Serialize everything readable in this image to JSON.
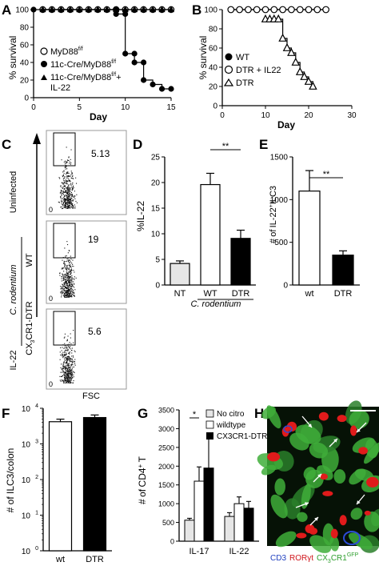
{
  "figure": {
    "panel_letters": [
      "A",
      "B",
      "C",
      "D",
      "E",
      "F",
      "G",
      "H"
    ]
  },
  "chart_data": [
    {
      "id": "A",
      "type": "line",
      "xlabel": "Day",
      "ylabel": "% survival",
      "xlim": [
        0,
        15
      ],
      "ylim": [
        0,
        100
      ],
      "xticks": [
        0,
        5,
        10,
        15
      ],
      "yticks": [
        0,
        20,
        40,
        60,
        80,
        100
      ],
      "series": [
        {
          "name": "MyD88f/f",
          "marker": "open-circle",
          "x": [
            1,
            2,
            3,
            4,
            5,
            6,
            7,
            8,
            9,
            10,
            11,
            12,
            13,
            14,
            15
          ],
          "y": [
            100,
            100,
            100,
            100,
            100,
            100,
            100,
            100,
            100,
            100,
            100,
            100,
            100,
            100,
            100
          ]
        },
        {
          "name": "11c-Cre/MyD88f/f",
          "marker": "filled-circle",
          "x": [
            0,
            9,
            9,
            10,
            10,
            11,
            11,
            12,
            12,
            13,
            14,
            15
          ],
          "y": [
            100,
            100,
            95,
            95,
            50,
            50,
            40,
            40,
            20,
            15,
            10,
            10
          ]
        },
        {
          "name": "11c-Cre/MyD88f/f + IL-22",
          "marker": "filled-triangle",
          "x": [
            1,
            2,
            3,
            4,
            5,
            6,
            7,
            8,
            9,
            10,
            11,
            12,
            13,
            14,
            15
          ],
          "y": [
            100,
            100,
            100,
            100,
            100,
            100,
            100,
            100,
            100,
            100,
            100,
            100,
            100,
            100,
            100
          ]
        }
      ],
      "legend": [
        "MyD88",
        "11c-Cre/MyD88",
        "11c-Cre/MyD88",
        "IL-22"
      ],
      "legend_sup": "f/f"
    },
    {
      "id": "B",
      "type": "line",
      "xlabel": "Day",
      "ylabel": "% survival",
      "xlim": [
        0,
        30
      ],
      "ylim": [
        0,
        100
      ],
      "xticks": [
        0,
        10,
        20,
        30
      ],
      "yticks": [
        0,
        20,
        40,
        60,
        80,
        100
      ],
      "series": [
        {
          "name": "WT",
          "marker": "filled-circle",
          "x": [
            2,
            4,
            6,
            8,
            10,
            12,
            14,
            16,
            18,
            20,
            22,
            24
          ],
          "y": [
            100,
            100,
            100,
            100,
            100,
            100,
            100,
            100,
            100,
            100,
            100,
            100
          ]
        },
        {
          "name": "DTR + IL22",
          "marker": "open-circle",
          "x": [
            2,
            4,
            6,
            8,
            10,
            12,
            14,
            16,
            18,
            20,
            22,
            24
          ],
          "y": [
            100,
            100,
            100,
            100,
            100,
            100,
            100,
            100,
            100,
            100,
            100,
            100
          ]
        },
        {
          "name": "DTR",
          "marker": "open-triangle",
          "x": [
            10,
            11,
            12,
            13,
            14,
            15,
            16,
            17,
            18,
            19,
            20,
            21
          ],
          "y": [
            90,
            90,
            90,
            90,
            70,
            60,
            55,
            45,
            35,
            30,
            25,
            20
          ]
        }
      ],
      "legend": [
        "WT",
        "DTR + IL22",
        "DTR"
      ]
    },
    {
      "id": "C",
      "type": "scatter",
      "xlabel": "FSC",
      "ylabel": "IL-22",
      "gate_values": [
        "5.13",
        "19",
        "5.6"
      ],
      "tick_zero": "0",
      "row_labels": [
        "Uninfected",
        "WT",
        "CX3CR1-DTR"
      ],
      "group_label": "C. rodentium",
      "cx3_main": "CX",
      "cx3_sub": "3",
      "cx3_rest": "CR1-DTR"
    },
    {
      "id": "D",
      "type": "bar",
      "ylabel": "%IL-22",
      "categories": [
        "NT",
        "WT",
        "DTR"
      ],
      "values": [
        4.2,
        19.6,
        9.1
      ],
      "errors": [
        0.5,
        2.2,
        1.6
      ],
      "ylim": [
        0,
        25
      ],
      "yticks": [
        0,
        5,
        10,
        15,
        20,
        25
      ],
      "significance": "**",
      "group_label": "C. rodentium"
    },
    {
      "id": "E",
      "type": "bar",
      "ylabel": "# of IL-22+ILC3",
      "categories": [
        "wt",
        "DTR"
      ],
      "values": [
        1100,
        350
      ],
      "errors": [
        240,
        50
      ],
      "ylim": [
        0,
        1500
      ],
      "yticks": [
        0,
        500,
        1000,
        1500
      ],
      "significance": "**"
    },
    {
      "id": "F",
      "type": "bar",
      "ylabel": "# of ILC3/colon",
      "categories": [
        "wt",
        "DTR"
      ],
      "values": [
        4200,
        5500
      ],
      "scale": "log",
      "ylim": [
        1,
        10000
      ],
      "ytick_exponents": [
        "0",
        "1",
        "2",
        "3",
        "4"
      ],
      "ytick_base": "10"
    },
    {
      "id": "G",
      "type": "bar",
      "ylabel": "# of CD4+ T",
      "categories": [
        "IL-17",
        "IL-22"
      ],
      "series": [
        {
          "name": "No citro",
          "values": [
            560,
            660
          ],
          "errors": [
            50,
            100
          ]
        },
        {
          "name": "wildtype",
          "values": [
            1600,
            1000
          ],
          "errors": [
            380,
            180
          ]
        },
        {
          "name": "CX3CR1-DTR",
          "values": [
            1950,
            880
          ],
          "errors": [
            900,
            180
          ]
        }
      ],
      "ylim": [
        0,
        3500
      ],
      "yticks": [
        0,
        500,
        1000,
        1500,
        2000,
        2500,
        3000,
        3500
      ],
      "significance": "*"
    },
    {
      "id": "H",
      "type": "image",
      "caption": [
        "CD3",
        "RORγt",
        "CX",
        "3",
        "CR1",
        "GFP"
      ]
    }
  ]
}
